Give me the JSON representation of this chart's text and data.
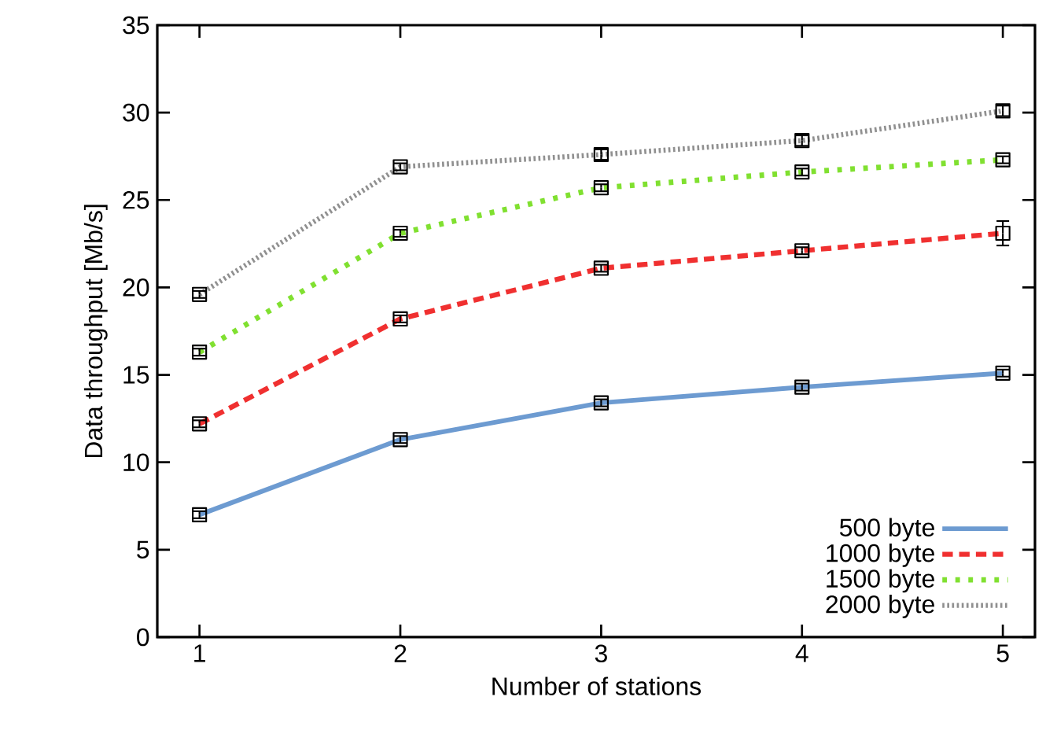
{
  "chart_data": {
    "type": "line",
    "xlabel": "Number of stations",
    "ylabel": "Data throughput [Mb/s]",
    "x": [
      1,
      2,
      3,
      4,
      5
    ],
    "xlim": [
      0.79,
      5.16
    ],
    "xticks": [
      1,
      2,
      3,
      4,
      5
    ],
    "ylim": [
      0,
      35
    ],
    "yticks": [
      0,
      5,
      10,
      15,
      20,
      25,
      30,
      35
    ],
    "marker": "square",
    "grid": false,
    "legend": "bottom right",
    "series": [
      {
        "name": "500 byte",
        "color": "#6d9bd1",
        "line_style": "solid",
        "values": [
          7.0,
          11.3,
          13.4,
          14.3,
          15.1
        ],
        "errors": [
          0.2,
          0.2,
          0.2,
          0.2,
          0.2
        ]
      },
      {
        "name": "1000 byte",
        "color": "#f03030",
        "line_style": "dashed",
        "values": [
          12.2,
          18.2,
          21.1,
          22.1,
          23.1
        ],
        "errors": [
          0.2,
          0.2,
          0.2,
          0.2,
          0.7
        ]
      },
      {
        "name": "1500 byte",
        "color": "#80e030",
        "line_style": "dotted",
        "values": [
          16.3,
          23.1,
          25.7,
          26.6,
          27.3
        ],
        "errors": [
          0.2,
          0.2,
          0.2,
          0.2,
          0.2
        ]
      },
      {
        "name": "2000 byte",
        "color": "#909090",
        "line_style": "dotted",
        "values": [
          19.6,
          26.9,
          27.6,
          28.4,
          30.1
        ],
        "errors": [
          0.2,
          0.2,
          0.3,
          0.3,
          0.3
        ]
      }
    ]
  }
}
